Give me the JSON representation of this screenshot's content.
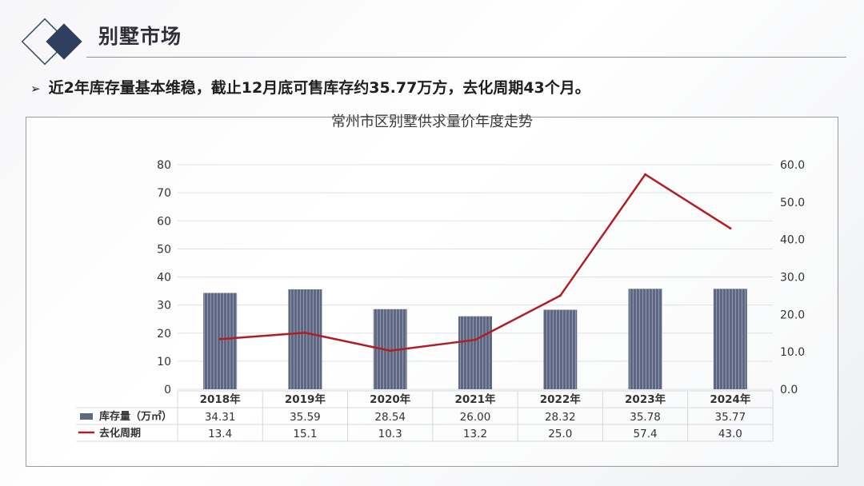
{
  "header": {
    "title": "别墅市场",
    "bullet": "近2年库存量基本维稳，截止12月底可售库存约35.77万方，去化周期43个月。"
  },
  "colors": {
    "bar": "#5e6882",
    "line": "#b01e23",
    "accent": "#2e3f5f"
  },
  "chart_data": {
    "type": "bar",
    "title": "常州市区别墅供求量价年度走势",
    "categories": [
      "2018年",
      "2019年",
      "2020年",
      "2021年",
      "2022年",
      "2023年",
      "2024年"
    ],
    "series": [
      {
        "name": "库存量（万㎡）",
        "type": "bar",
        "axis": "left",
        "values": [
          34.31,
          35.59,
          28.54,
          26.0,
          28.32,
          35.78,
          35.77
        ],
        "labels": [
          "34.31",
          "35.59",
          "28.54",
          "26.00",
          "28.32",
          "35.78",
          "35.77"
        ]
      },
      {
        "name": "去化周期",
        "type": "line",
        "axis": "right",
        "values": [
          13.4,
          15.1,
          10.3,
          13.2,
          25.0,
          57.4,
          43.0
        ],
        "labels": [
          "13.4",
          "15.1",
          "10.3",
          "13.2",
          "25.0",
          "57.4",
          "43.0"
        ]
      }
    ],
    "ylim_left": [
      0,
      80
    ],
    "yticks_left": [
      "0",
      "10",
      "20",
      "30",
      "40",
      "50",
      "60",
      "70",
      "80"
    ],
    "ylim_right": [
      0,
      60
    ],
    "yticks_right": [
      "0.0",
      "10.0",
      "20.0",
      "30.0",
      "40.0",
      "50.0",
      "60.0"
    ],
    "grid": true,
    "legend": "data-table"
  }
}
